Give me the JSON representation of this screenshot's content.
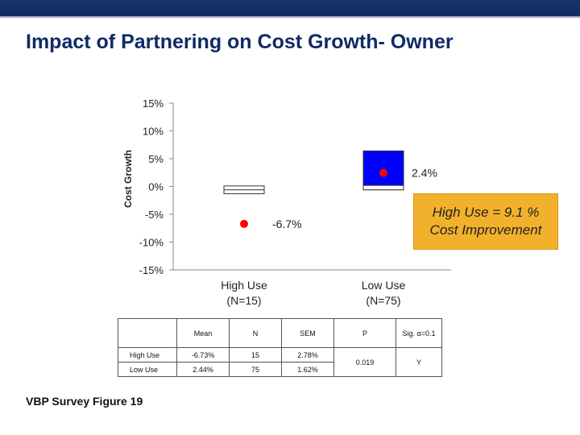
{
  "slide": {
    "title": "Impact of Partnering on Cost Growth- Owner",
    "footnote": "VBP Survey Figure 19",
    "callout": "High Use = 9.1 % Cost Improvement"
  },
  "colors": {
    "header_bar": "#0f2a5e",
    "title": "#102a66",
    "low_use_box": "#0000ff",
    "marker": "#ff0000",
    "callout_fill": "#f2b12c"
  },
  "chart_data": {
    "type": "scatter",
    "ylabel": "Cost Growth",
    "ylim": [
      -15,
      15
    ],
    "yticks": [
      15,
      10,
      5,
      0,
      -5,
      -10,
      -15
    ],
    "ytick_labels": [
      "15%",
      "10%",
      "5%",
      "0%",
      "-5%",
      "-10%",
      "-15%"
    ],
    "categories": [
      {
        "label": "High Use",
        "sublabel": "(N=15)"
      },
      {
        "label": "Low Use",
        "sublabel": "(N=75)"
      }
    ],
    "series": [
      {
        "category": "High Use",
        "mean": -6.73,
        "mean_label": "-6.7%",
        "box_low": -1.3,
        "box_high": 0.1,
        "box_color": "#ffffff"
      },
      {
        "category": "Low Use",
        "mean": 2.44,
        "mean_label": "2.4%",
        "box_low": -0.6,
        "box_high": 6.4,
        "box_color": "#0000ff"
      }
    ],
    "grid": false
  },
  "table": {
    "headers": [
      "",
      "Mean",
      "N",
      "SEM",
      "P",
      "Sig. α=0.1"
    ],
    "rows": [
      {
        "label": "High Use",
        "mean": "-6.73%",
        "n": "15",
        "sem": "2.78%"
      },
      {
        "label": "Low Use",
        "mean": "2.44%",
        "n": "75",
        "sem": "1.62%"
      }
    ],
    "p": "0.019",
    "sig": "Y"
  }
}
